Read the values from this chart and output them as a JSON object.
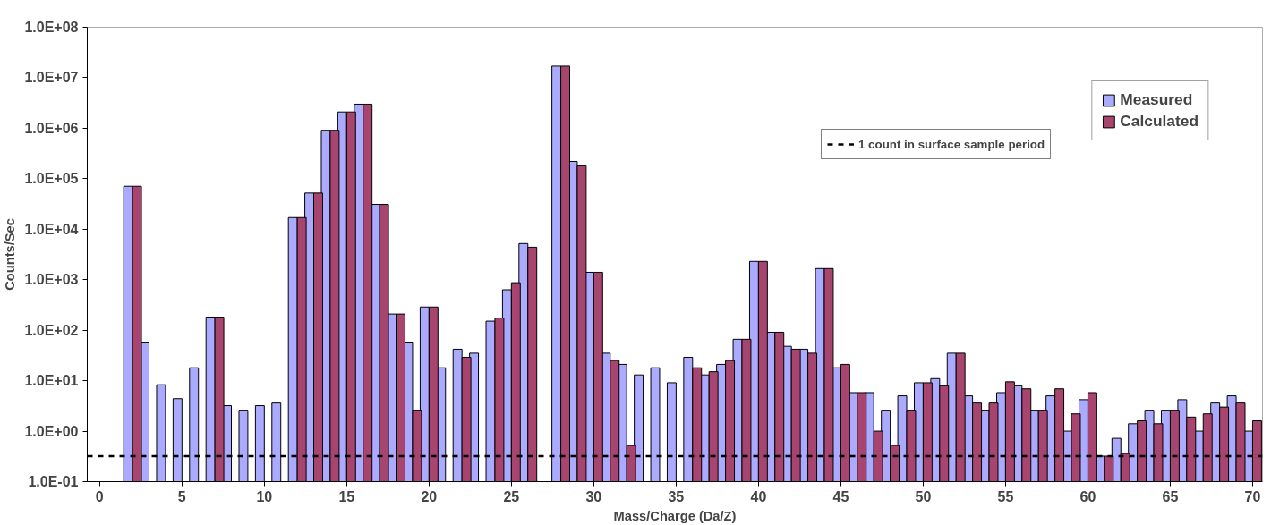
{
  "chart_data": {
    "type": "bar",
    "xlabel": "Mass/Charge (Da/Z)",
    "ylabel": "Counts/Sec",
    "x": [
      2,
      3,
      4,
      5,
      6,
      7,
      8,
      9,
      10,
      11,
      12,
      13,
      14,
      15,
      16,
      17,
      18,
      19,
      20,
      21,
      22,
      23,
      24,
      25,
      26,
      28,
      29,
      30,
      31,
      32,
      33,
      34,
      35,
      36,
      37,
      38,
      39,
      40,
      41,
      42,
      43,
      44,
      45,
      46,
      47,
      48,
      49,
      50,
      51,
      52,
      53,
      54,
      55,
      56,
      57,
      58,
      59,
      60,
      61,
      62,
      63,
      64,
      65,
      66,
      67,
      68,
      69,
      70
    ],
    "series": [
      {
        "name": "Measured",
        "color": "#aaaaff",
        "values": [
          71000,
          58,
          8.3,
          4.4,
          18,
          182,
          3.2,
          2.6,
          3.2,
          3.6,
          17000,
          52000,
          910000,
          2100000,
          3000000,
          31000,
          209,
          58,
          288,
          18,
          42,
          35,
          151,
          631,
          5200,
          17000000,
          220000,
          1400,
          35,
          21,
          13,
          18,
          9.1,
          29,
          13,
          21,
          66,
          2300,
          91,
          48,
          42,
          1660,
          18,
          5.8,
          5.8,
          2.6,
          5.0,
          9.1,
          11,
          35,
          5.0,
          2.6,
          5.8,
          7.9,
          2.6,
          5.0,
          1.0,
          4.2,
          0.32,
          0.72,
          1.4,
          2.6,
          2.6,
          4.2,
          1.0,
          3.6,
          5.0,
          1.0
        ]
      },
      {
        "name": "Calculated",
        "color": "#a8456f",
        "values": [
          71000,
          null,
          null,
          null,
          null,
          182,
          null,
          null,
          null,
          null,
          17000,
          52000,
          910000,
          2100000,
          3000000,
          31000,
          209,
          2.6,
          288,
          null,
          29,
          null,
          174,
          871,
          4400,
          17000000,
          180000,
          1400,
          25,
          0.52,
          null,
          null,
          null,
          18,
          15,
          25,
          66,
          2300,
          91,
          42,
          35,
          1660,
          21,
          5.8,
          1.0,
          0.52,
          2.6,
          9.1,
          7.9,
          35,
          3.6,
          3.6,
          9.5,
          6.9,
          2.6,
          6.9,
          2.2,
          5.8,
          0.32,
          0.36,
          1.6,
          1.4,
          2.6,
          1.9,
          2.2,
          3.0,
          3.6,
          1.6
        ]
      }
    ],
    "log": "y",
    "ylim": [
      0.1,
      100000000
    ],
    "yticks": [
      {
        "value": 0.1,
        "label": "1.0E-01"
      },
      {
        "value": 1,
        "label": "1.0E+00"
      },
      {
        "value": 10,
        "label": "1.0E+01"
      },
      {
        "value": 100,
        "label": "1.0E+02"
      },
      {
        "value": 1000,
        "label": "1.0E+03"
      },
      {
        "value": 10000,
        "label": "1.0E+04"
      },
      {
        "value": 100000,
        "label": "1.0E+05"
      },
      {
        "value": 1000000,
        "label": "1.0E+06"
      },
      {
        "value": 10000000,
        "label": "1.0E+07"
      },
      {
        "value": 100000000,
        "label": "1.0E+08"
      }
    ],
    "xlim": [
      -0.75,
      70.6
    ],
    "xticks": [
      0,
      5,
      10,
      15,
      20,
      25,
      30,
      35,
      40,
      45,
      50,
      55,
      60,
      65,
      70
    ],
    "ref_lines": [
      {
        "axis": "y",
        "value": 0.32,
        "label": "1 count in surface sample period",
        "color": "#000000",
        "line_style": "dashed"
      }
    ],
    "legend": "top right",
    "grid": false
  }
}
